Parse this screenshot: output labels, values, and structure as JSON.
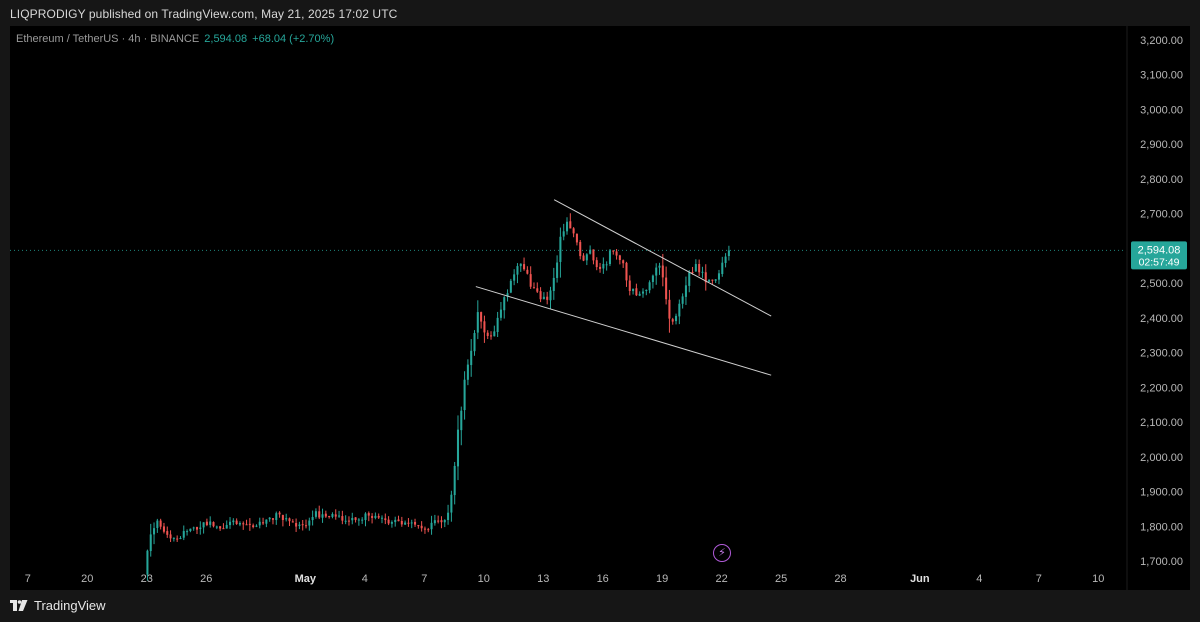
{
  "publish": {
    "text": "LIQPRODIGY published on TradingView.com, May 21, 2025 17:02 UTC"
  },
  "legend": {
    "symbol": "Ethereum / TetherUS · 4h · BINANCE",
    "last": "2,594.08",
    "change": "+68.04 (+2.70%)"
  },
  "footer": {
    "brand": "TradingView"
  },
  "price_tag": {
    "price": "2,594.08",
    "countdown": "02:57:49"
  },
  "colors": {
    "up": "#26a69a",
    "down": "#ef5350",
    "tag": "#26a69a",
    "trendline": "#d0d0d0",
    "background": "#000000"
  },
  "icons": [
    "tradingview-logo-icon",
    "lightning-icon"
  ],
  "chart_data": {
    "type": "candlestick",
    "symbol": "ETHUSDT",
    "interval": "4h",
    "y_ticks": [
      "3,200.00",
      "3,100.00",
      "3,000.00",
      "2,900.00",
      "2,800.00",
      "2,700.00",
      "2,600.00",
      "2,500.00",
      "2,400.00",
      "2,300.00",
      "2,200.00",
      "2,100.00",
      "2,000.00",
      "1,900.00",
      "1,800.00",
      "1,700.00"
    ],
    "y_tick_values": [
      3200,
      3100,
      3000,
      2900,
      2800,
      2700,
      2600,
      2500,
      2400,
      2300,
      2200,
      2100,
      2000,
      1900,
      1800,
      1700
    ],
    "ylim": [
      1680,
      3240
    ],
    "x_ticks": [
      {
        "label": "7",
        "day": -14
      },
      {
        "label": "20",
        "day": -11
      },
      {
        "label": "23",
        "day": -8
      },
      {
        "label": "26",
        "day": -5
      },
      {
        "label": "May",
        "day": 0
      },
      {
        "label": "4",
        "day": 3
      },
      {
        "label": "7",
        "day": 6
      },
      {
        "label": "10",
        "day": 9
      },
      {
        "label": "13",
        "day": 12
      },
      {
        "label": "16",
        "day": 15
      },
      {
        "label": "19",
        "day": 18
      },
      {
        "label": "22",
        "day": 21
      },
      {
        "label": "25",
        "day": 24
      },
      {
        "label": "28",
        "day": 27
      },
      {
        "label": "Jun",
        "day": 31
      },
      {
        "label": "4",
        "day": 34
      },
      {
        "label": "7",
        "day": 37
      },
      {
        "label": "10",
        "day": 40
      }
    ],
    "xlim_days": [
      -14.9,
      41.4
    ],
    "anchors": [
      [
        -8.05,
        1670
      ],
      [
        -7.8,
        1770
      ],
      [
        -7.5,
        1820
      ],
      [
        -6.9,
        1785
      ],
      [
        -6.6,
        1760
      ],
      [
        -5.9,
        1785
      ],
      [
        -5.2,
        1800
      ],
      [
        -4.7,
        1815
      ],
      [
        -4.3,
        1795
      ],
      [
        -3.5,
        1815
      ],
      [
        -2.8,
        1795
      ],
      [
        -2.0,
        1810
      ],
      [
        -1.3,
        1830
      ],
      [
        -0.6,
        1815
      ],
      [
        -0.1,
        1795
      ],
      [
        0.5,
        1835
      ],
      [
        1.0,
        1830
      ],
      [
        1.7,
        1825
      ],
      [
        2.4,
        1820
      ],
      [
        3.0,
        1830
      ],
      [
        3.7,
        1825
      ],
      [
        4.4,
        1815
      ],
      [
        5.0,
        1805
      ],
      [
        5.7,
        1810
      ],
      [
        6.1,
        1790
      ],
      [
        6.6,
        1815
      ],
      [
        7.0,
        1805
      ],
      [
        7.2,
        1825
      ],
      [
        7.45,
        1910
      ],
      [
        7.7,
        2010
      ],
      [
        7.95,
        2160
      ],
      [
        8.25,
        2240
      ],
      [
        8.5,
        2330
      ],
      [
        8.75,
        2420
      ],
      [
        9.05,
        2350
      ],
      [
        9.4,
        2330
      ],
      [
        9.8,
        2390
      ],
      [
        10.1,
        2460
      ],
      [
        10.5,
        2510
      ],
      [
        10.85,
        2570
      ],
      [
        11.25,
        2530
      ],
      [
        11.6,
        2480
      ],
      [
        12.0,
        2460
      ],
      [
        12.3,
        2440
      ],
      [
        12.55,
        2520
      ],
      [
        12.8,
        2580
      ],
      [
        13.0,
        2650
      ],
      [
        13.35,
        2670
      ],
      [
        13.7,
        2620
      ],
      [
        14.1,
        2570
      ],
      [
        14.5,
        2590
      ],
      [
        14.85,
        2540
      ],
      [
        15.25,
        2560
      ],
      [
        15.65,
        2600
      ],
      [
        16.05,
        2560
      ],
      [
        16.4,
        2490
      ],
      [
        16.8,
        2470
      ],
      [
        17.2,
        2475
      ],
      [
        17.6,
        2510
      ],
      [
        17.9,
        2580
      ],
      [
        18.2,
        2470
      ],
      [
        18.45,
        2380
      ],
      [
        18.75,
        2400
      ],
      [
        19.1,
        2460
      ],
      [
        19.5,
        2530
      ],
      [
        19.85,
        2550
      ],
      [
        20.25,
        2510
      ],
      [
        20.6,
        2500
      ],
      [
        20.95,
        2540
      ],
      [
        21.2,
        2580
      ],
      [
        21.42,
        2594.08
      ]
    ],
    "last_price": 2594.08,
    "trendlines": [
      {
        "name": "upper",
        "from": {
          "day": 12.55,
          "price": 2740
        },
        "to": {
          "day": 23.5,
          "price": 2405
        }
      },
      {
        "name": "lower",
        "from": {
          "day": 8.6,
          "price": 2490
        },
        "to": {
          "day": 23.5,
          "price": 2235
        }
      }
    ]
  }
}
